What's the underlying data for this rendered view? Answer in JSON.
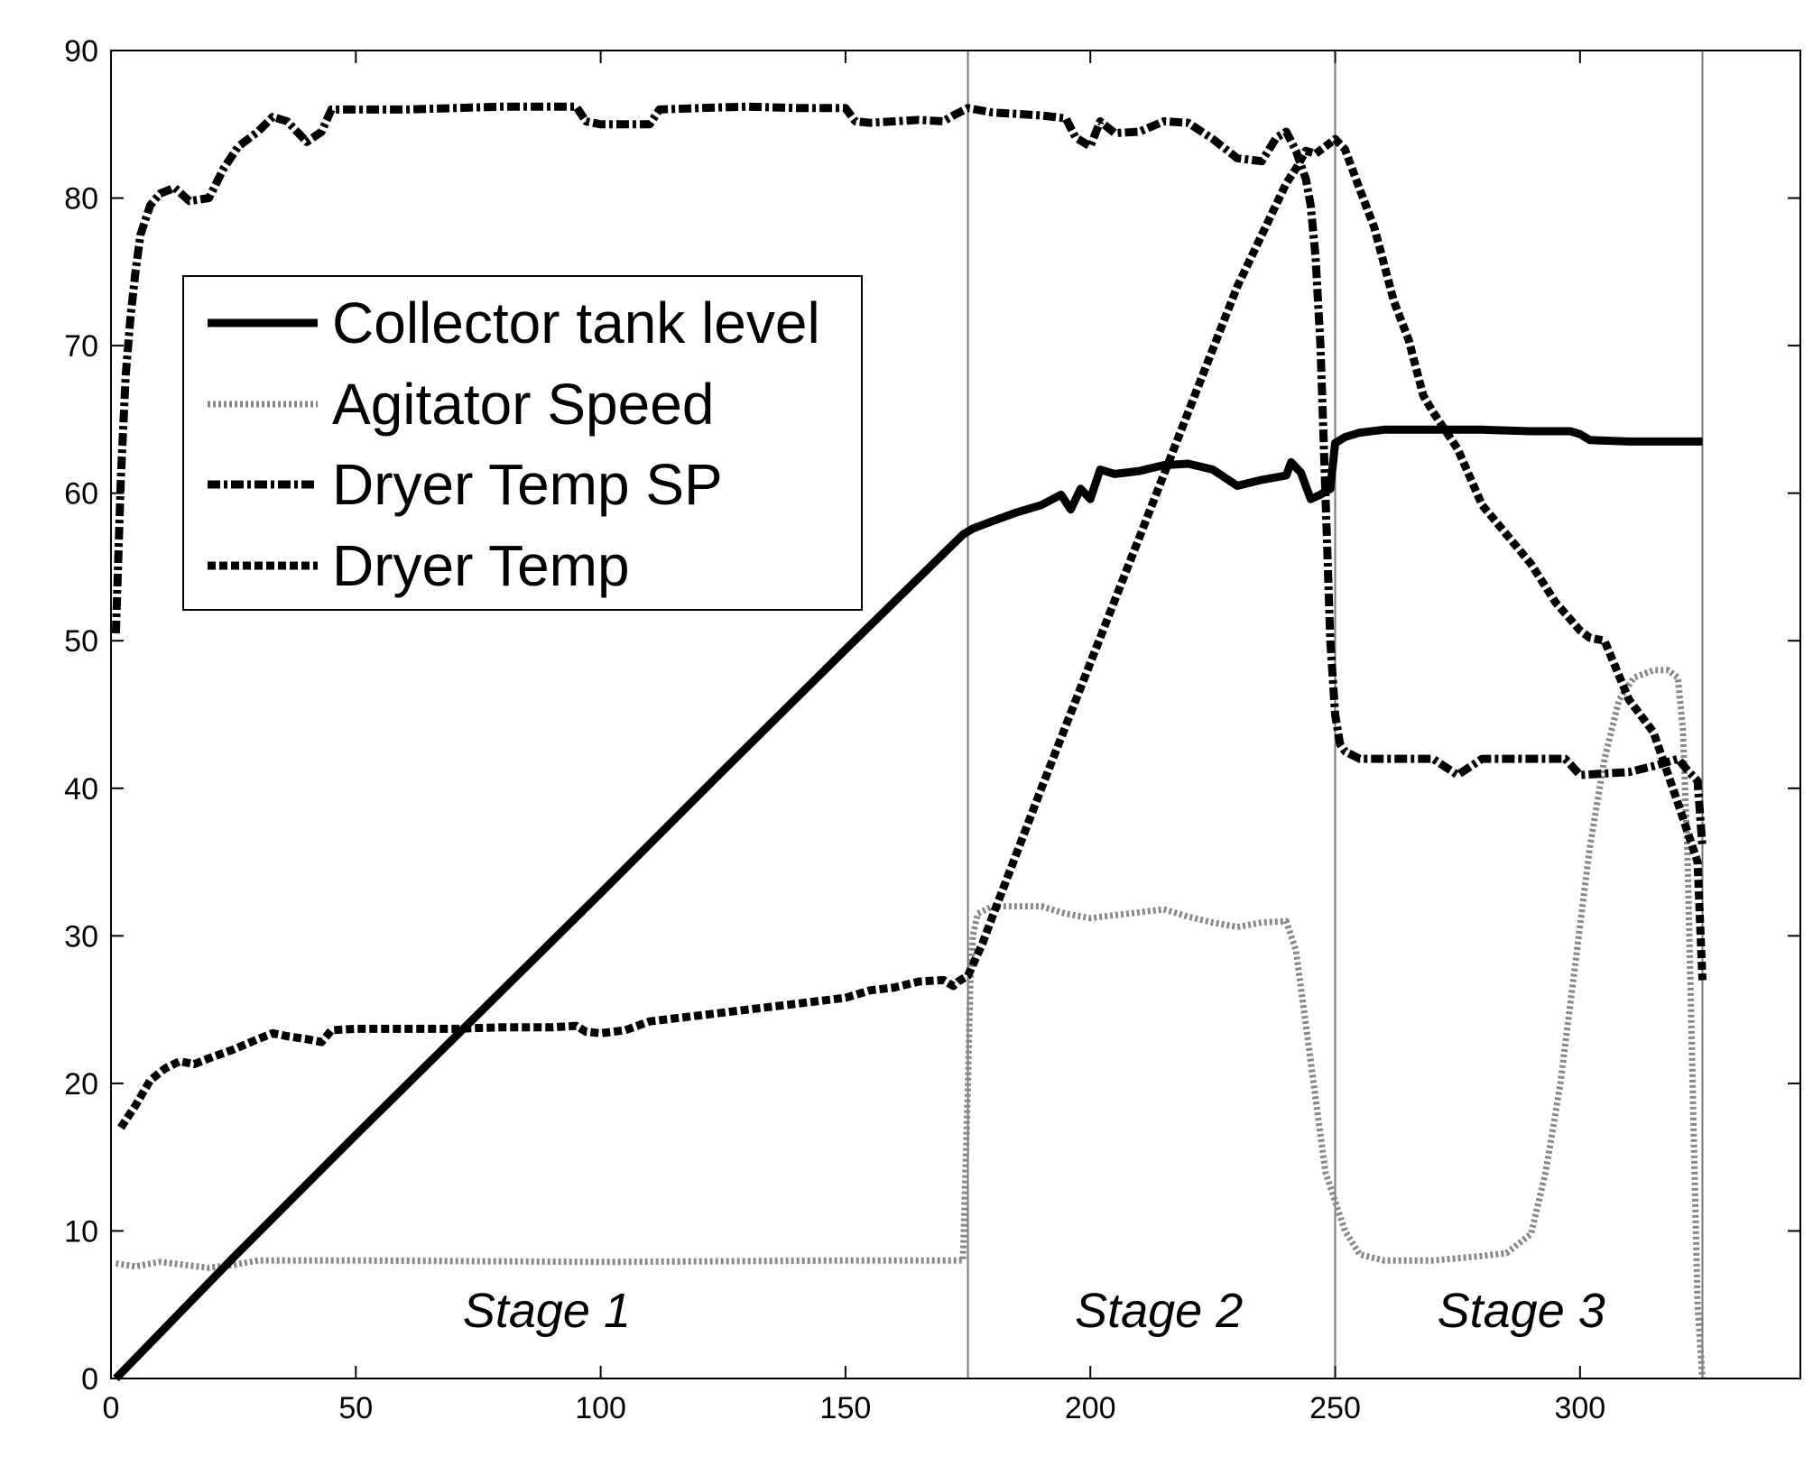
{
  "chart_data": {
    "type": "line",
    "title": "",
    "xlabel": "",
    "ylabel": "",
    "xlim": [
      0,
      345
    ],
    "ylim": [
      0,
      90
    ],
    "xticks": [
      0,
      50,
      100,
      150,
      200,
      250,
      300
    ],
    "yticks": [
      0,
      10,
      20,
      30,
      40,
      50,
      60,
      70,
      80,
      90
    ],
    "grid": false,
    "legend_position": "upper-left",
    "stage_boundaries": [
      175,
      250,
      325
    ],
    "stage_labels": [
      {
        "text": "Stage 1",
        "x": 89,
        "y": 3.5
      },
      {
        "text": "Stage 2",
        "x": 214,
        "y": 3.5
      },
      {
        "text": "Stage 3",
        "x": 288,
        "y": 3.5
      }
    ],
    "series": [
      {
        "name": "Collector tank level",
        "style": "solid",
        "color": "#000000",
        "x": [
          1,
          25,
          50,
          75,
          100,
          125,
          150,
          174,
          176,
          180,
          185,
          190,
          194,
          196,
          198,
          200,
          202,
          205,
          210,
          215,
          220,
          225,
          230,
          235,
          240,
          241,
          243,
          245,
          247,
          249,
          250,
          252,
          255,
          260,
          270,
          280,
          290,
          298,
          300,
          302,
          310,
          325
        ],
        "y": [
          0,
          8.2,
          16.5,
          24.7,
          32.9,
          41.2,
          49.4,
          57.2,
          57.6,
          58.1,
          58.7,
          59.2,
          59.9,
          58.9,
          60.3,
          59.6,
          61.6,
          61.3,
          61.5,
          61.9,
          62,
          61.6,
          60.5,
          60.9,
          61.2,
          62.1,
          61.4,
          59.6,
          59.9,
          60.3,
          63.4,
          63.8,
          64.1,
          64.3,
          64.3,
          64.3,
          64.2,
          64.2,
          64,
          63.6,
          63.5,
          63.5
        ]
      },
      {
        "name": "Agitator Speed",
        "style": "dotted",
        "color": "#888888",
        "x": [
          1,
          5,
          10,
          15,
          20,
          25,
          30,
          40,
          50,
          100,
          150,
          174,
          175,
          175.5,
          176,
          177,
          180,
          190,
          195,
          200,
          205,
          210,
          215,
          220,
          225,
          230,
          235,
          240,
          242,
          244,
          246,
          248,
          250,
          252,
          255,
          260,
          270,
          280,
          285,
          290,
          293,
          296,
          299,
          302,
          305,
          308,
          311,
          315,
          318,
          320,
          321,
          322,
          323,
          324,
          325
        ],
        "y": [
          7.8,
          7.6,
          7.9,
          7.7,
          7.5,
          7.7,
          8,
          8,
          8,
          7.9,
          8,
          8,
          20,
          27,
          30,
          31.5,
          32,
          32,
          31.5,
          31.2,
          31.4,
          31.6,
          31.8,
          31.3,
          30.9,
          30.6,
          30.9,
          31,
          29,
          24,
          19,
          14,
          12,
          10,
          8.4,
          8,
          8,
          8.3,
          8.5,
          9.8,
          14,
          20,
          28,
          36,
          42,
          46,
          47.5,
          48,
          48,
          47.5,
          44,
          35,
          20,
          5,
          0
        ]
      },
      {
        "name": "Dryer Temp SP",
        "style": "dashdot",
        "color": "#000000",
        "x": [
          1,
          2,
          3,
          4,
          5,
          6,
          8,
          10,
          13,
          16,
          20,
          23,
          26,
          30,
          33,
          36,
          40,
          43,
          45,
          50,
          60,
          70,
          80,
          90,
          95,
          97,
          100,
          105,
          110,
          112,
          120,
          130,
          140,
          150,
          152,
          155,
          160,
          165,
          170,
          172,
          175,
          180,
          185,
          190,
          195,
          197,
          200,
          202,
          205,
          210,
          215,
          220,
          225,
          230,
          235,
          238,
          240,
          242,
          244,
          245,
          246,
          247,
          248,
          249,
          250,
          251,
          252,
          255,
          260,
          270,
          275,
          280,
          290,
          297,
          300,
          305,
          310,
          315,
          320,
          322,
          324,
          325
        ],
        "y": [
          50.5,
          61,
          68,
          72,
          75,
          77.5,
          79.5,
          80.3,
          80.7,
          79.8,
          80,
          82,
          83.5,
          84.5,
          85.5,
          85.2,
          83.8,
          84.5,
          86,
          86,
          86,
          86.1,
          86.2,
          86.2,
          86.2,
          85.2,
          85,
          85,
          85,
          86,
          86.1,
          86.2,
          86.1,
          86.1,
          85.2,
          85.1,
          85.2,
          85.3,
          85.2,
          85.6,
          86.1,
          85.8,
          85.7,
          85.6,
          85.4,
          84.1,
          83.5,
          85.2,
          84.4,
          84.5,
          85.2,
          85.1,
          84,
          82.7,
          82.5,
          84.1,
          84.5,
          83.2,
          81.3,
          79.5,
          76,
          70,
          60,
          50,
          45,
          43,
          42.5,
          42,
          42,
          42,
          40.9,
          42,
          42,
          42,
          40.9,
          41,
          41.1,
          41.5,
          42,
          41.2,
          40.5,
          36
        ]
      },
      {
        "name": "Dryer Temp",
        "style": "dotted",
        "color": "#000000",
        "x": [
          2,
          5,
          8,
          11,
          14,
          17,
          20,
          25,
          30,
          33,
          36,
          40,
          43,
          45,
          50,
          60,
          70,
          80,
          90,
          95,
          97,
          100,
          105,
          110,
          120,
          130,
          140,
          150,
          155,
          160,
          165,
          170,
          172,
          173,
          175,
          178,
          180,
          190,
          200,
          210,
          220,
          230,
          240,
          242,
          244,
          246,
          248,
          250,
          252,
          255,
          258,
          262,
          265,
          268,
          270,
          275,
          280,
          290,
          295,
          300,
          302,
          305,
          310,
          315,
          320,
          322,
          324,
          325
        ],
        "y": [
          17,
          18.5,
          20.2,
          21,
          21.5,
          21.3,
          21.7,
          22.3,
          23,
          23.4,
          23.2,
          23,
          22.8,
          23.6,
          23.7,
          23.7,
          23.7,
          23.8,
          23.8,
          23.9,
          23.5,
          23.4,
          23.6,
          24.2,
          24.6,
          25,
          25.4,
          25.8,
          26.3,
          26.5,
          26.9,
          27,
          26.6,
          26.9,
          27.3,
          29.5,
          31.3,
          40,
          48.5,
          57,
          65.5,
          74,
          81,
          82,
          83.2,
          83,
          83.5,
          84,
          83.3,
          80.6,
          78,
          73,
          70.4,
          66.6,
          65.5,
          63,
          59.2,
          55.2,
          52.6,
          50.7,
          50.2,
          50,
          46,
          43.8,
          39,
          37,
          35,
          27
        ]
      }
    ]
  }
}
